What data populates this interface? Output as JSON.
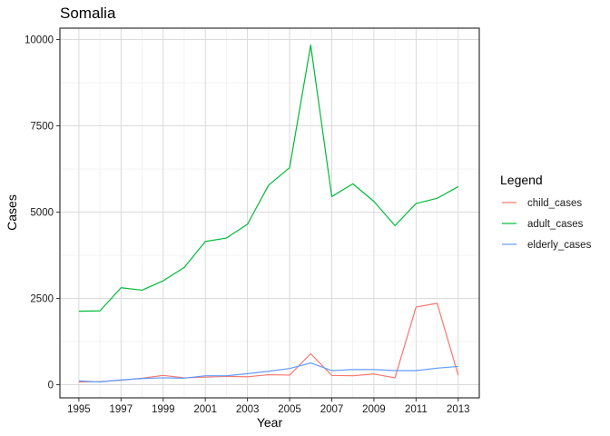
{
  "chart_data": {
    "type": "line",
    "title": "Somalia",
    "xlabel": "Year",
    "ylabel": "Cases",
    "x": [
      1995,
      1996,
      1997,
      1998,
      1999,
      2000,
      2001,
      2002,
      2003,
      2004,
      2005,
      2006,
      2007,
      2008,
      2009,
      2010,
      2011,
      2012,
      2013
    ],
    "xlim": [
      1994.1,
      2014.0
    ],
    "ylim": [
      -380,
      10330
    ],
    "xticks": [
      "1995",
      "1997",
      "1999",
      "2001",
      "2003",
      "2005",
      "2007",
      "2009",
      "2011",
      "2013"
    ],
    "yticks": [
      "0",
      "2500",
      "5000",
      "7500",
      "10000"
    ],
    "grid": true,
    "legend": {
      "title": "Legend",
      "position": "right"
    },
    "series": [
      {
        "name": "child_cases",
        "color": "#F8766D",
        "values": [
          80,
          90,
          130,
          190,
          270,
          200,
          220,
          240,
          230,
          290,
          280,
          900,
          270,
          260,
          310,
          200,
          2250,
          2360,
          280
        ]
      },
      {
        "name": "adult_cases",
        "color": "#00BA38",
        "values": [
          2130,
          2140,
          2810,
          2740,
          3010,
          3400,
          4150,
          4250,
          4650,
          5780,
          6290,
          9840,
          5450,
          5820,
          5310,
          4610,
          5250,
          5400,
          5740
        ]
      },
      {
        "name": "elderly_cases",
        "color": "#619CFF",
        "values": [
          110,
          80,
          140,
          180,
          200,
          190,
          260,
          260,
          320,
          390,
          470,
          630,
          410,
          440,
          440,
          410,
          410,
          480,
          530
        ]
      }
    ]
  }
}
